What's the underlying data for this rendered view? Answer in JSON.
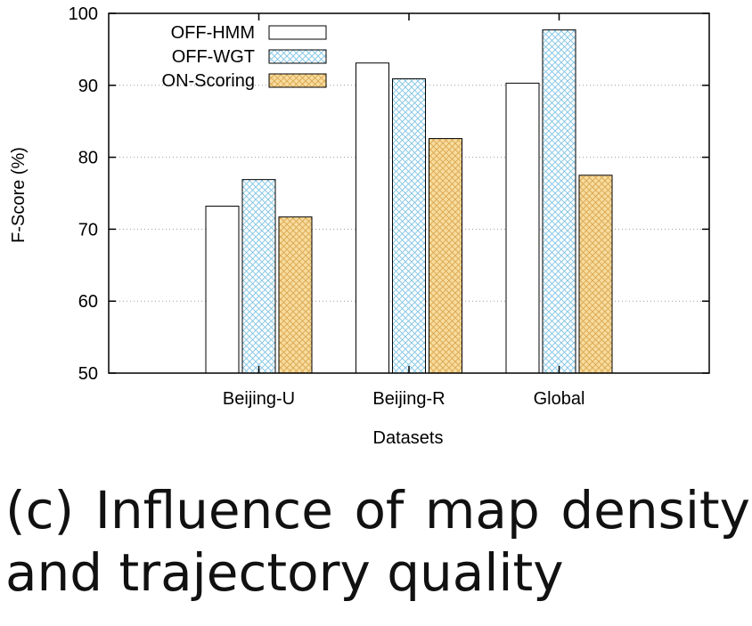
{
  "chart_data": {
    "type": "bar",
    "title": "",
    "xlabel": "Datasets",
    "ylabel": "F-Score (%)",
    "ylim": [
      50,
      100
    ],
    "yticks": [
      50,
      60,
      70,
      80,
      90,
      100
    ],
    "grid": "horizontal-dotted",
    "legend_position": "top-left",
    "categories": [
      "Beijing-U",
      "Beijing-R",
      "Global"
    ],
    "series": [
      {
        "name": "OFF-HMM",
        "values": [
          73.2,
          93.1,
          90.3
        ],
        "color": "#ffffff",
        "pattern": "none"
      },
      {
        "name": "OFF-WGT",
        "values": [
          76.9,
          90.9,
          97.7
        ],
        "color": "#a8d8ec",
        "pattern": "crosshatch"
      },
      {
        "name": "ON-Scoring",
        "values": [
          71.7,
          82.6,
          77.5
        ],
        "color": "#f5d595",
        "pattern": "crosshatch"
      }
    ]
  },
  "caption": "(c) Influence of map density and trajectory quality"
}
